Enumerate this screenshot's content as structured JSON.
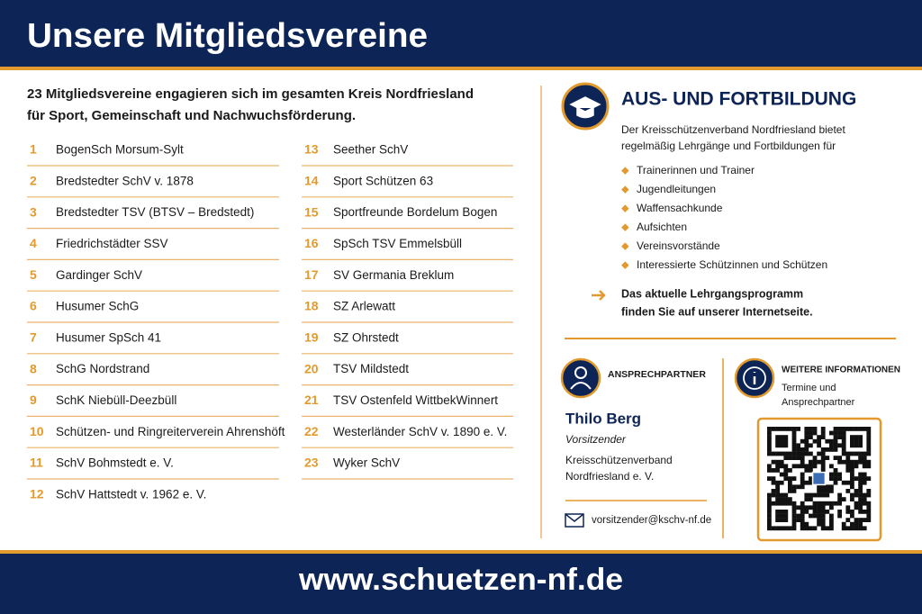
{
  "header": {
    "title": "Unsere Mitgliedsvereine"
  },
  "intro": [
    "23 Mitgliedsvereine engagieren sich im gesamten Kreis Nordfriesland",
    "für Sport, Gemeinschaft und Nachwuchsförderung."
  ],
  "clubs": [
    {
      "number": 1,
      "name": "BogenSch Morsum-Sylt"
    },
    {
      "number": 2,
      "name": "Bredstedter SchV v. 1878"
    },
    {
      "number": 3,
      "name": "Bredstedter TSV (BTSV – Bredstedt)"
    },
    {
      "number": 4,
      "name": "Friedrichstädter SSV"
    },
    {
      "number": 5,
      "name": "Gardinger SchV"
    },
    {
      "number": 6,
      "name": "Husumer SchG"
    },
    {
      "number": 7,
      "name": "Husumer SpSch 41"
    },
    {
      "number": 8,
      "name": "SchG Nordstrand"
    },
    {
      "number": 9,
      "name": "SchK Niebüll-Deezbüll"
    },
    {
      "number": 10,
      "name": "Schützen- und Ringreiterverein Ahrenshöft"
    },
    {
      "number": 11,
      "name": "SchV Bohmstedt e. V."
    },
    {
      "number": 12,
      "name": "SchV Hattstedt v. 1962 e. V."
    },
    {
      "number": 13,
      "name": "Seether SchV"
    },
    {
      "number": 14,
      "name": "Sport Schützen 63"
    },
    {
      "number": 15,
      "name": "Sportfreunde Bordelum Bogen"
    },
    {
      "number": 16,
      "name": "SpSch TSV Emmelsbüll"
    },
    {
      "number": 17,
      "name": "SV Germania Breklum"
    },
    {
      "number": 18,
      "name": "SZ Arlewatt"
    },
    {
      "number": 19,
      "name": "SZ Ohrstedt"
    },
    {
      "number": 20,
      "name": "TSV Mildstedt"
    },
    {
      "number": 21,
      "name": "TSV Ostenfeld WittbekWinnert"
    },
    {
      "number": 22,
      "name": "Westerländer SchV v. 1890 e. V."
    },
    {
      "number": 23,
      "name": "Wyker SchV"
    }
  ],
  "training": {
    "title": "AUS- UND FORTBILDUNG",
    "text": [
      "Der Kreisschützenverband Nordfriesland bietet",
      "regelmäßig Lehrgänge und Fortbildungen für"
    ],
    "bullets": [
      "Trainerinnen und Trainer",
      "Jugendleitungen",
      "Waffensachkunde",
      "Aufsichten",
      "Vereinsvorstände",
      "Interessierte Schützinnen und Schützen"
    ],
    "note": [
      "Das aktuelle Lehrgangsprogramm",
      "finden Sie auf unserer Internetseite."
    ]
  },
  "contact": {
    "heading": "ANSPRECHPARTNER",
    "name": "Thilo Berg",
    "role": "Vorsitzender",
    "organization": [
      "Kreisschützenverband",
      "Nordfriesland e. V."
    ],
    "email": "vorsitzender@kschv-nf.de"
  },
  "info": {
    "heading": "WEITERE INFORMATIONEN",
    "text": [
      "Termine und",
      "Ansprechpartner"
    ]
  },
  "footer": {
    "url": "www.schuetzen-nf.de"
  }
}
